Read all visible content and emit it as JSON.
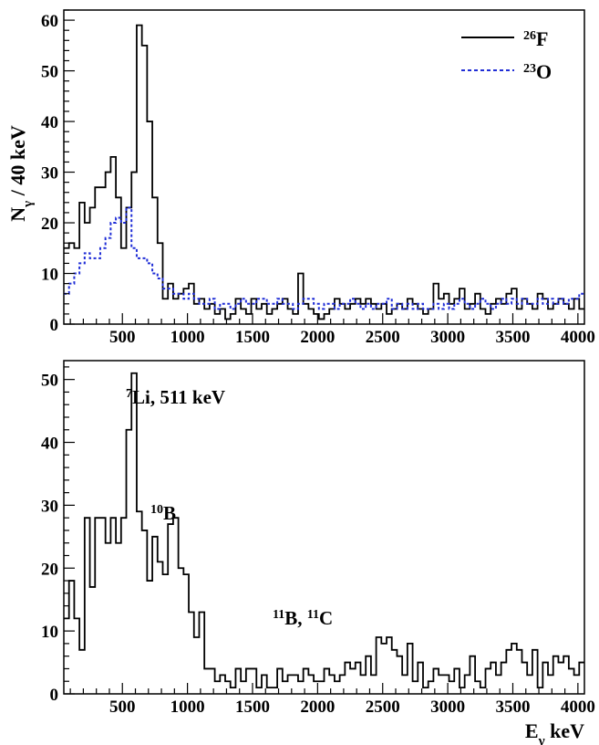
{
  "chart_data": [
    {
      "type": "step",
      "xlim": [
        50,
        4050
      ],
      "ylim": [
        0,
        62
      ],
      "xticks": [
        500,
        1000,
        1500,
        2000,
        2500,
        3000,
        3500,
        4000
      ],
      "yticks": [
        0,
        10,
        20,
        30,
        40,
        50,
        60
      ],
      "ylabel": {
        "main": "N",
        "sub": "γ",
        "rest": " / 40 keV"
      },
      "xlabel": null,
      "grid": false,
      "legend_position": "top-right",
      "series": [
        {
          "name": {
            "sup": "26",
            "main": "F"
          },
          "style": "solid",
          "color": "#000000",
          "bin_start": 50,
          "bin_width": 40,
          "values": [
            15,
            16,
            15,
            24,
            20,
            23,
            27,
            27,
            30,
            33,
            25,
            15,
            23,
            30,
            59,
            55,
            40,
            25,
            16,
            5,
            8,
            5,
            6,
            7,
            8,
            4,
            5,
            3,
            4,
            2,
            3,
            1,
            2,
            5,
            3,
            2,
            5,
            3,
            4,
            2,
            3,
            4,
            5,
            3,
            2,
            10,
            4,
            3,
            2,
            1,
            2,
            3,
            5,
            4,
            3,
            4,
            5,
            4,
            5,
            4,
            3,
            4,
            2,
            3,
            4,
            3,
            5,
            4,
            3,
            2,
            3,
            8,
            5,
            6,
            4,
            5,
            7,
            3,
            4,
            6,
            3,
            2,
            4,
            5,
            4,
            6,
            7,
            3,
            5,
            4,
            3,
            6,
            5,
            3,
            4,
            5,
            4,
            3,
            5,
            3
          ]
        },
        {
          "name": {
            "sup": "23",
            "main": "O"
          },
          "style": "dotted",
          "color": "#1f2dd6",
          "bin_start": 50,
          "bin_width": 40,
          "values": [
            6,
            8,
            10,
            12,
            14,
            13,
            13,
            15,
            17,
            20,
            21,
            20,
            23,
            15,
            13,
            13,
            12,
            10,
            9,
            7,
            7,
            6,
            6,
            5,
            6,
            5,
            4,
            4,
            5,
            3,
            4,
            4,
            3,
            4,
            5,
            4,
            4,
            5,
            5,
            4,
            4,
            5,
            4,
            4,
            3,
            4,
            5,
            5,
            4,
            3,
            4,
            4,
            3,
            4,
            4,
            5,
            4,
            3,
            4,
            3,
            4,
            4,
            5,
            3,
            4,
            3,
            4,
            3,
            4,
            3,
            3,
            4,
            3,
            4,
            3,
            4,
            5,
            4,
            3,
            4,
            5,
            4,
            3,
            4,
            5,
            4,
            5,
            4,
            5,
            4,
            4,
            5,
            4,
            5,
            4,
            5,
            4,
            5,
            5,
            6
          ]
        }
      ]
    },
    {
      "type": "step",
      "xlim": [
        50,
        4050
      ],
      "ylim": [
        0,
        53
      ],
      "xticks": [
        500,
        1000,
        1500,
        2000,
        2500,
        3000,
        3500,
        4000
      ],
      "yticks": [
        0,
        10,
        20,
        30,
        40,
        50
      ],
      "xlabel": {
        "main": "E",
        "sub": "γ",
        "rest": " keV"
      },
      "ylabel": null,
      "grid": false,
      "series": [
        {
          "name": null,
          "style": "solid",
          "color": "#000000",
          "bin_start": 50,
          "bin_width": 40,
          "values": [
            12,
            18,
            12,
            7,
            28,
            17,
            28,
            28,
            24,
            28,
            24,
            28,
            42,
            51,
            29,
            26,
            18,
            25,
            21,
            19,
            27,
            28,
            20,
            19,
            13,
            9,
            13,
            4,
            4,
            2,
            3,
            2,
            1,
            4,
            2,
            4,
            4,
            1,
            3,
            1,
            1,
            4,
            2,
            3,
            3,
            2,
            4,
            3,
            2,
            2,
            4,
            3,
            2,
            3,
            5,
            4,
            5,
            3,
            6,
            3,
            9,
            8,
            9,
            7,
            6,
            3,
            8,
            2,
            5,
            1,
            2,
            4,
            3,
            3,
            2,
            4,
            1,
            3,
            6,
            2,
            1,
            4,
            5,
            3,
            5,
            7,
            8,
            7,
            5,
            3,
            7,
            1,
            5,
            3,
            6,
            5,
            6,
            4,
            3,
            5
          ]
        }
      ],
      "annotations": [
        {
          "sup": "7",
          "text": "Li, 511 keV"
        },
        {
          "sup": "10",
          "text": "B"
        },
        {
          "sup": "11",
          "text": "B, ",
          "sup2": "11",
          "text2": "C"
        }
      ]
    }
  ]
}
